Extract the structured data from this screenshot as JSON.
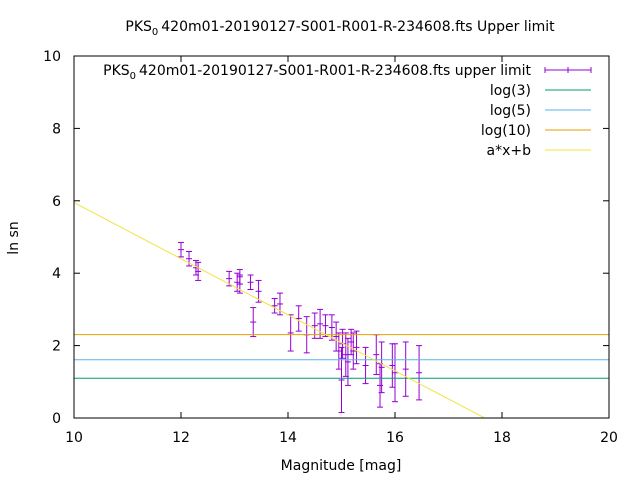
{
  "chart_data": {
    "type": "scatter",
    "title": {
      "pre": "PKS",
      "sub": "0",
      "post": "420m01-20190127-S001-R001-R-234608.fts Upper limit"
    },
    "xlabel": "Magnitude [mag]",
    "ylabel": "ln sn",
    "xlim": [
      10,
      20
    ],
    "ylim": [
      0,
      10
    ],
    "xticks": [
      10,
      12,
      14,
      16,
      18,
      20
    ],
    "yticks": [
      0,
      2,
      4,
      6,
      8,
      10
    ],
    "xtick_labels": [
      "10",
      "12",
      "14",
      "16",
      "18",
      "20"
    ],
    "ytick_labels": [
      "0",
      "2",
      "4",
      "6",
      "8",
      "10"
    ],
    "grid": false,
    "legend_position": "top-right",
    "series": [
      {
        "name": {
          "pre": "PKS",
          "sub": "0",
          "post": "420m01-20190127-S001-R001-R-234608.fts upper limit"
        },
        "kind": "errorbars",
        "color": "#9400d3",
        "points": [
          {
            "x": 12.0,
            "y": 4.65,
            "err": 0.2
          },
          {
            "x": 12.15,
            "y": 4.4,
            "err": 0.2
          },
          {
            "x": 12.28,
            "y": 4.15,
            "err": 0.2
          },
          {
            "x": 12.32,
            "y": 4.05,
            "err": 0.25
          },
          {
            "x": 12.9,
            "y": 3.85,
            "err": 0.2
          },
          {
            "x": 13.05,
            "y": 3.75,
            "err": 0.25
          },
          {
            "x": 13.1,
            "y": 3.7,
            "err": 0.25
          },
          {
            "x": 13.1,
            "y": 3.9,
            "err": 0.2
          },
          {
            "x": 13.3,
            "y": 3.75,
            "err": 0.2
          },
          {
            "x": 13.35,
            "y": 2.65,
            "err": 0.4
          },
          {
            "x": 13.45,
            "y": 3.5,
            "err": 0.3
          },
          {
            "x": 13.75,
            "y": 3.1,
            "err": 0.2
          },
          {
            "x": 13.85,
            "y": 3.15,
            "err": 0.3
          },
          {
            "x": 14.05,
            "y": 2.35,
            "err": 0.5
          },
          {
            "x": 14.2,
            "y": 2.75,
            "err": 0.35
          },
          {
            "x": 14.35,
            "y": 2.3,
            "err": 0.5
          },
          {
            "x": 14.5,
            "y": 2.55,
            "err": 0.35
          },
          {
            "x": 14.6,
            "y": 2.6,
            "err": 0.4
          },
          {
            "x": 14.7,
            "y": 2.55,
            "err": 0.3
          },
          {
            "x": 14.82,
            "y": 2.5,
            "err": 0.35
          },
          {
            "x": 14.9,
            "y": 2.25,
            "err": 0.4
          },
          {
            "x": 14.95,
            "y": 1.85,
            "err": 0.5
          },
          {
            "x": 15.0,
            "y": 1.05,
            "err": 0.9
          },
          {
            "x": 15.02,
            "y": 2.05,
            "err": 0.4
          },
          {
            "x": 15.08,
            "y": 1.75,
            "err": 0.6
          },
          {
            "x": 15.12,
            "y": 1.55,
            "err": 0.65
          },
          {
            "x": 15.18,
            "y": 2.1,
            "err": 0.35
          },
          {
            "x": 15.22,
            "y": 1.85,
            "err": 0.5
          },
          {
            "x": 15.28,
            "y": 1.95,
            "err": 0.45
          },
          {
            "x": 15.45,
            "y": 1.45,
            "err": 0.5
          },
          {
            "x": 15.65,
            "y": 1.75,
            "err": 0.55
          },
          {
            "x": 15.72,
            "y": 0.9,
            "err": 0.6
          },
          {
            "x": 15.75,
            "y": 1.4,
            "err": 0.7
          },
          {
            "x": 15.95,
            "y": 1.45,
            "err": 0.6
          },
          {
            "x": 16.0,
            "y": 1.25,
            "err": 0.8
          },
          {
            "x": 16.2,
            "y": 1.35,
            "err": 0.75
          },
          {
            "x": 16.45,
            "y": 1.25,
            "err": 0.75
          }
        ]
      },
      {
        "name": "log(3)",
        "kind": "hline",
        "y": 1.0986,
        "color": "#009e73"
      },
      {
        "name": "log(5)",
        "kind": "hline",
        "y": 1.6094,
        "color": "#56b4e9"
      },
      {
        "name": "log(10)",
        "kind": "hline",
        "y": 2.3026,
        "color": "#e69f00"
      },
      {
        "name": "a*x+b",
        "kind": "fit",
        "a": -0.775,
        "b": 13.7,
        "color": "#f0e442"
      }
    ]
  }
}
